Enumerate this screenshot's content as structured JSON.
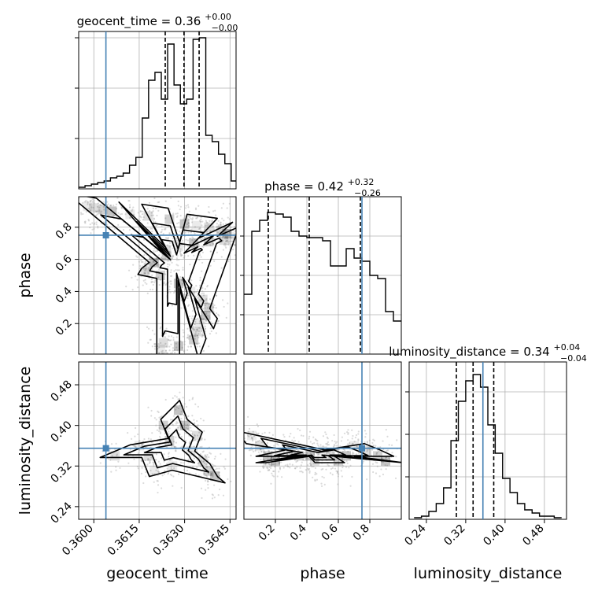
{
  "chart_data": {
    "type": "corner",
    "parameters": [
      "geocent_time",
      "phase",
      "luminosity_distance"
    ],
    "axis_labels": {
      "geocent_time": "geocent_time",
      "phase": "phase",
      "luminosity_distance": "luminosity_distance"
    },
    "truth": {
      "geocent_time": 0.3604,
      "phase": 0.75,
      "luminosity_distance": 0.355
    },
    "colors": {
      "truth": "#4682b4",
      "hist": "#000000",
      "grid": "#b0b0b0"
    },
    "panels": [
      {
        "id": "geocent_time-1d",
        "type": "step-histogram",
        "param": "geocent_time",
        "xlim": [
          0.3595,
          0.3647
        ],
        "ylim": [
          0,
          1.0
        ],
        "title_name": "geocent_time",
        "title_value": "0.36",
        "title_plus": "+0.00",
        "title_minus": "−0.00",
        "quantiles": [
          0.36236,
          0.36298,
          0.36348
        ],
        "bin_edges": [
          0.3595,
          0.35971,
          0.35992,
          0.36013,
          0.36034,
          0.36055,
          0.36076,
          0.36097,
          0.36118,
          0.36139,
          0.3616,
          0.36181,
          0.36202,
          0.36223,
          0.36244,
          0.36265,
          0.36286,
          0.36307,
          0.36328,
          0.36349,
          0.3637,
          0.36391,
          0.36412,
          0.36433,
          0.36454,
          0.3647
        ],
        "counts": [
          0.01,
          0.02,
          0.03,
          0.04,
          0.05,
          0.07,
          0.08,
          0.1,
          0.15,
          0.2,
          0.45,
          0.69,
          0.74,
          0.57,
          0.92,
          0.66,
          0.54,
          0.57,
          0.95,
          0.96,
          0.34,
          0.3,
          0.22,
          0.16,
          0.05
        ],
        "yticks": [
          0.32,
          0.64,
          0.96
        ]
      },
      {
        "id": "phase-1d",
        "type": "step-histogram",
        "param": "phase",
        "xlim": [
          0.0,
          1.0
        ],
        "ylim": [
          0,
          1.0
        ],
        "title_name": "phase",
        "title_value": "0.42",
        "title_plus": "+0.32",
        "title_minus": "−0.26",
        "quantiles": [
          0.155,
          0.415,
          0.74
        ],
        "bin_edges": [
          0.0,
          0.05,
          0.1,
          0.15,
          0.2,
          0.25,
          0.3,
          0.35,
          0.4,
          0.45,
          0.5,
          0.55,
          0.6,
          0.65,
          0.7,
          0.75,
          0.8,
          0.85,
          0.9,
          0.95,
          1.0
        ],
        "counts": [
          0.38,
          0.78,
          0.85,
          0.9,
          0.89,
          0.87,
          0.78,
          0.75,
          0.74,
          0.74,
          0.72,
          0.56,
          0.56,
          0.67,
          0.61,
          0.59,
          0.5,
          0.48,
          0.27,
          0.21
        ],
        "yticks": [
          0.25,
          0.5,
          0.75
        ]
      },
      {
        "id": "luminosity_distance-1d",
        "type": "step-histogram",
        "param": "luminosity_distance",
        "xlim": [
          0.205,
          0.525
        ],
        "ylim": [
          0,
          1.0
        ],
        "title_name": "luminosity_distance",
        "title_value": "0.34",
        "title_plus": "+0.04",
        "title_minus": "−0.04",
        "quantiles": [
          0.301,
          0.335,
          0.377
        ],
        "bin_edges": [
          0.215,
          0.23,
          0.245,
          0.26,
          0.275,
          0.29,
          0.305,
          0.32,
          0.335,
          0.35,
          0.365,
          0.38,
          0.395,
          0.41,
          0.425,
          0.44,
          0.455,
          0.47,
          0.485,
          0.5,
          0.515
        ],
        "counts": [
          0.01,
          0.02,
          0.05,
          0.1,
          0.2,
          0.5,
          0.75,
          0.88,
          0.92,
          0.84,
          0.6,
          0.42,
          0.26,
          0.17,
          0.1,
          0.06,
          0.04,
          0.02,
          0.02,
          0.01
        ],
        "yticks": [
          0.27,
          0.54,
          0.81
        ]
      }
    ],
    "density_panels": [
      {
        "id": "phase-vs-geocent_time",
        "x": "geocent_time",
        "y": "phase",
        "xlim": [
          0.3595,
          0.3647
        ],
        "ylim": [
          0.01,
          0.99
        ],
        "samples": [
          [
            0.3598,
            0.93
          ],
          [
            0.36,
            0.92
          ],
          [
            0.3603,
            0.91
          ],
          [
            0.3606,
            0.9
          ],
          [
            0.3612,
            0.88
          ],
          [
            0.3618,
            0.87
          ],
          [
            0.3625,
            0.85
          ],
          [
            0.363,
            0.82
          ],
          [
            0.3634,
            0.81
          ],
          [
            0.3638,
            0.8
          ],
          [
            0.3642,
            0.78
          ],
          [
            0.3644,
            0.76
          ],
          [
            0.3645,
            0.74
          ],
          [
            0.3643,
            0.72
          ],
          [
            0.3638,
            0.71
          ],
          [
            0.3633,
            0.7
          ],
          [
            0.3628,
            0.68
          ],
          [
            0.3624,
            0.66
          ],
          [
            0.3624,
            0.62
          ],
          [
            0.362,
            0.58
          ],
          [
            0.3618,
            0.55
          ],
          [
            0.3617,
            0.52
          ],
          [
            0.3622,
            0.5
          ],
          [
            0.3628,
            0.45
          ],
          [
            0.3632,
            0.4
          ],
          [
            0.3636,
            0.35
          ],
          [
            0.3638,
            0.3
          ],
          [
            0.3637,
            0.25
          ],
          [
            0.3635,
            0.2
          ],
          [
            0.3634,
            0.15
          ],
          [
            0.3633,
            0.1
          ],
          [
            0.3628,
            0.06
          ],
          [
            0.3622,
            0.04
          ],
          [
            0.3623,
            0.08
          ]
        ]
      },
      {
        "id": "luminosity_distance-vs-geocent_time",
        "x": "geocent_time",
        "y": "luminosity_distance",
        "xlim": [
          0.3595,
          0.3647
        ],
        "ylim": [
          0.215,
          0.525
        ],
        "samples": [
          [
            0.3615,
            0.36
          ],
          [
            0.3618,
            0.34
          ],
          [
            0.3625,
            0.37
          ],
          [
            0.363,
            0.4
          ],
          [
            0.3632,
            0.35
          ],
          [
            0.3636,
            0.33
          ],
          [
            0.3638,
            0.31
          ],
          [
            0.364,
            0.3
          ],
          [
            0.3626,
            0.32
          ],
          [
            0.3634,
            0.38
          ],
          [
            0.3623,
            0.4
          ],
          [
            0.3628,
            0.43
          ],
          [
            0.362,
            0.31
          ],
          [
            0.3607,
            0.34
          ]
        ]
      },
      {
        "id": "luminosity_distance-vs-phase",
        "x": "phase",
        "y": "luminosity_distance",
        "xlim": [
          0.0,
          1.0
        ],
        "ylim": [
          0.215,
          0.525
        ],
        "samples": [
          [
            0.05,
            0.38
          ],
          [
            0.1,
            0.36
          ],
          [
            0.15,
            0.34
          ],
          [
            0.2,
            0.33
          ],
          [
            0.25,
            0.34
          ],
          [
            0.3,
            0.35
          ],
          [
            0.35,
            0.34
          ],
          [
            0.42,
            0.34
          ],
          [
            0.5,
            0.35
          ],
          [
            0.55,
            0.34
          ],
          [
            0.6,
            0.33
          ],
          [
            0.65,
            0.34
          ],
          [
            0.7,
            0.36
          ],
          [
            0.78,
            0.35
          ],
          [
            0.85,
            0.34
          ],
          [
            0.9,
            0.33
          ],
          [
            0.15,
            0.33
          ],
          [
            0.45,
            0.33
          ]
        ]
      }
    ],
    "ticks": {
      "geocent_time": [
        "0.3600",
        "0.3615",
        "0.3630",
        "0.3645"
      ],
      "phase": [
        "0.2",
        "0.4",
        "0.6",
        "0.8"
      ],
      "luminosity_distance": [
        "0.24",
        "0.32",
        "0.40",
        "0.48"
      ]
    },
    "tick_values": {
      "geocent_time": [
        0.36,
        0.3615,
        0.363,
        0.3645
      ],
      "phase": [
        0.2,
        0.4,
        0.6,
        0.8
      ],
      "luminosity_distance": [
        0.24,
        0.32,
        0.4,
        0.48
      ]
    }
  }
}
